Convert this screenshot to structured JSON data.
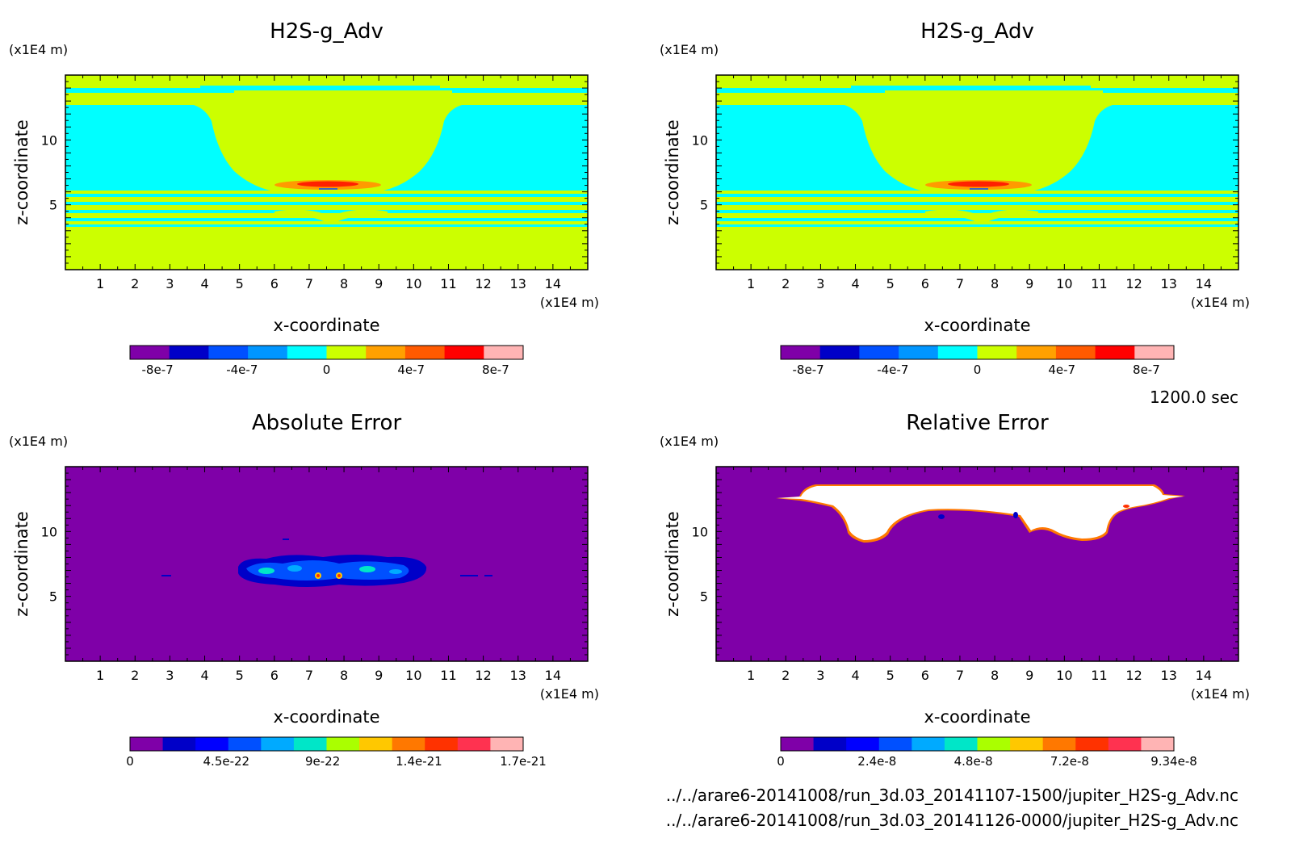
{
  "time_label": "1200.0 sec",
  "footer": {
    "file1": "../../arare6-20141008/run_3d.03_20141107-1500/jupiter_H2S-g_Adv.nc",
    "file2": "../../arare6-20141008/run_3d.03_20141126-0000/jupiter_H2S-g_Adv.nc"
  },
  "colors": {
    "background_yellow": "#ccff00",
    "cyan": "#00ffff",
    "purple": "#7f00a8",
    "white": "#ffffff"
  },
  "chart_data": [
    {
      "type": "heatmap",
      "title": "H2S-g_Adv",
      "xlabel": "x-coordinate",
      "ylabel": "z-coordinate",
      "x_unit": "(x1E4 m)",
      "y_unit": "(x1E4 m)",
      "xlim": [
        0,
        15
      ],
      "ylim": [
        0,
        15
      ],
      "x_ticks": [
        "1",
        "2",
        "3",
        "4",
        "5",
        "6",
        "7",
        "8",
        "9",
        "10",
        "11",
        "12",
        "13",
        "14"
      ],
      "y_ticks": [
        "5",
        "10"
      ],
      "colorbar": {
        "labels": [
          "-8e-7",
          "-4e-7",
          "0",
          "4e-7",
          "8e-7"
        ],
        "colors": [
          "#7f00a8",
          "#0000c8",
          "#0050ff",
          "#0096ff",
          "#00ffff",
          "#ccff00",
          "#ffa000",
          "#ff5a00",
          "#ff0000",
          "#ffb4b4"
        ]
      }
    },
    {
      "type": "heatmap",
      "title": "H2S-g_Adv",
      "xlabel": "x-coordinate",
      "ylabel": "z-coordinate",
      "x_unit": "(x1E4 m)",
      "y_unit": "(x1E4 m)",
      "xlim": [
        0,
        15
      ],
      "ylim": [
        0,
        15
      ],
      "x_ticks": [
        "1",
        "2",
        "3",
        "4",
        "5",
        "6",
        "7",
        "8",
        "9",
        "10",
        "11",
        "12",
        "13",
        "14"
      ],
      "y_ticks": [
        "5",
        "10"
      ],
      "colorbar": {
        "labels": [
          "-8e-7",
          "-4e-7",
          "0",
          "4e-7",
          "8e-7"
        ],
        "colors": [
          "#7f00a8",
          "#0000c8",
          "#0050ff",
          "#0096ff",
          "#00ffff",
          "#ccff00",
          "#ffa000",
          "#ff5a00",
          "#ff0000",
          "#ffb4b4"
        ]
      }
    },
    {
      "type": "heatmap",
      "title": "Absolute Error",
      "xlabel": "x-coordinate",
      "ylabel": "z-coordinate",
      "x_unit": "(x1E4 m)",
      "y_unit": "(x1E4 m)",
      "xlim": [
        0,
        15
      ],
      "ylim": [
        0,
        15
      ],
      "x_ticks": [
        "1",
        "2",
        "3",
        "4",
        "5",
        "6",
        "7",
        "8",
        "9",
        "10",
        "11",
        "12",
        "13",
        "14"
      ],
      "y_ticks": [
        "5",
        "10"
      ],
      "colorbar": {
        "labels": [
          "0",
          "4.5e-22",
          "9e-22",
          "1.4e-21",
          "1.7e-21"
        ],
        "colors": [
          "#7f00a8",
          "#0000c8",
          "#0000ff",
          "#0050ff",
          "#00aaff",
          "#00e6c8",
          "#aaff00",
          "#ffc800",
          "#ff7800",
          "#ff3200",
          "#ff3250",
          "#ffb4b4"
        ]
      }
    },
    {
      "type": "heatmap",
      "title": "Relative Error",
      "xlabel": "x-coordinate",
      "ylabel": "z-coordinate",
      "x_unit": "(x1E4 m)",
      "y_unit": "(x1E4 m)",
      "xlim": [
        0,
        15
      ],
      "ylim": [
        0,
        15
      ],
      "x_ticks": [
        "1",
        "2",
        "3",
        "4",
        "5",
        "6",
        "7",
        "8",
        "9",
        "10",
        "11",
        "12",
        "13",
        "14"
      ],
      "y_ticks": [
        "5",
        "10"
      ],
      "colorbar": {
        "labels": [
          "0",
          "2.4e-8",
          "4.8e-8",
          "7.2e-8",
          "9.34e-8"
        ],
        "colors": [
          "#7f00a8",
          "#0000c8",
          "#0000ff",
          "#0050ff",
          "#00aaff",
          "#00e6c8",
          "#aaff00",
          "#ffc800",
          "#ff7800",
          "#ff3200",
          "#ff3250",
          "#ffb4b4"
        ]
      }
    }
  ]
}
